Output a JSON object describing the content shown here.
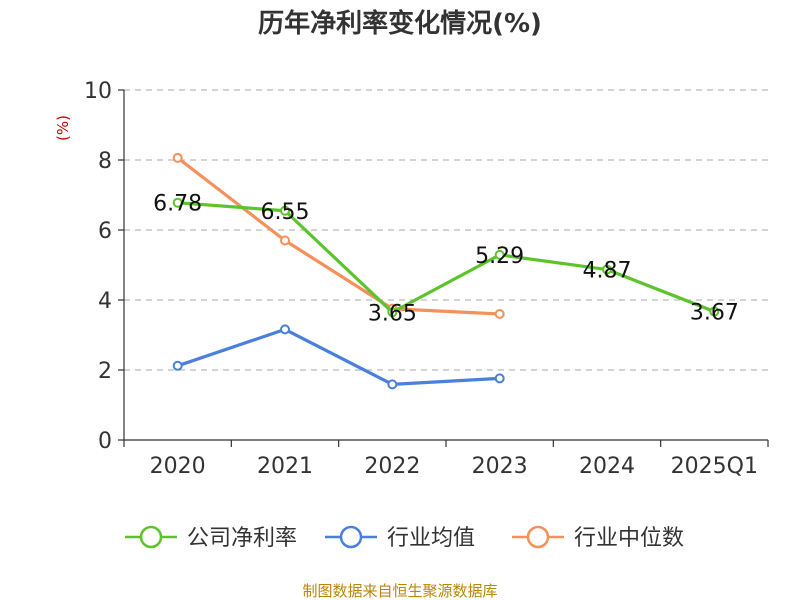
{
  "chart_data": {
    "type": "line",
    "title": "历年净利率变化情况(%)",
    "ylabel": "(%)",
    "ylim": [
      0,
      10
    ],
    "yticks": [
      0,
      2,
      4,
      6,
      8,
      10
    ],
    "categories": [
      "2020",
      "2021",
      "2022",
      "2023",
      "2024",
      "2025Q1"
    ],
    "grid": true,
    "legend_position": "bottom",
    "series": [
      {
        "name": "公司净利率",
        "color": "#5cc42b",
        "values": [
          6.78,
          6.55,
          3.65,
          5.29,
          4.87,
          3.67
        ],
        "labels": [
          "6.78",
          "6.55",
          "3.65",
          "5.29",
          "4.87",
          "3.67"
        ]
      },
      {
        "name": "行业均值",
        "color": "#4a7fdb",
        "values": [
          2.12,
          3.16,
          1.59,
          1.76,
          null,
          null
        ]
      },
      {
        "name": "行业中位数",
        "color": "#f5905a",
        "values": [
          8.06,
          5.7,
          3.75,
          3.6,
          null,
          null
        ]
      }
    ],
    "source": "制图数据来自恒生聚源数据库"
  }
}
